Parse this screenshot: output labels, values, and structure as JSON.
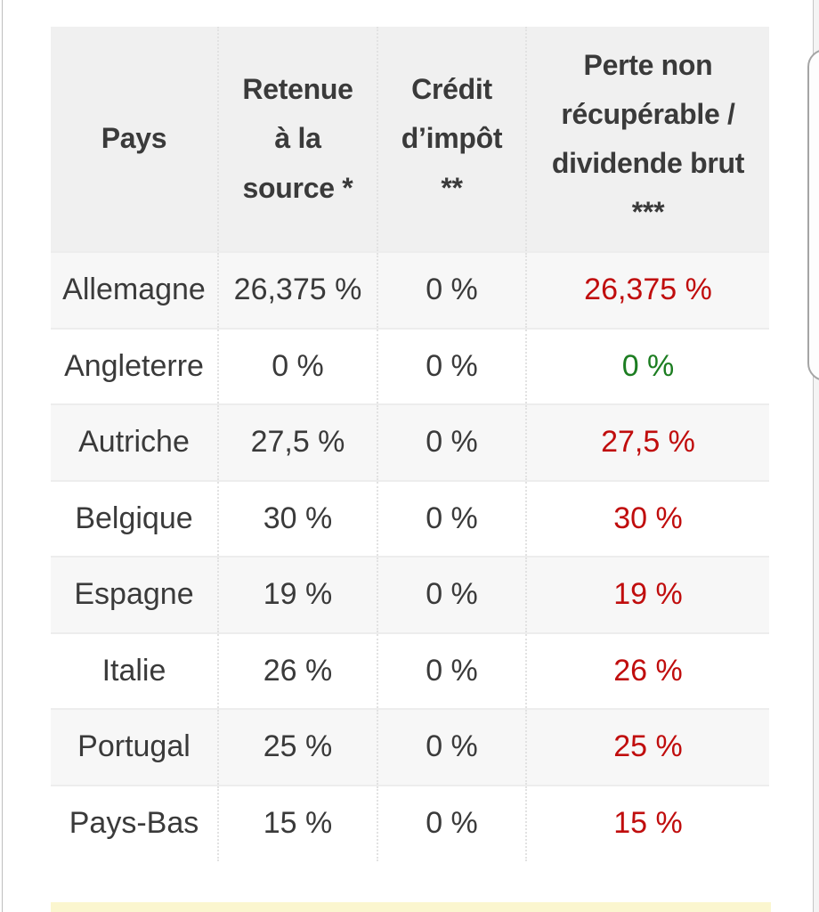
{
  "colors": {
    "red": "#c00d0d",
    "green": "#1c7d21",
    "text": "#3a3a3a",
    "header_bg": "#f0f0f0",
    "row_alt_bg": "#f7f7f7",
    "note_band_bg": "#fbf6cf"
  },
  "table": {
    "columns": [
      {
        "label": "Pays"
      },
      {
        "label": "Retenue\nà la\nsource *"
      },
      {
        "label": "Crédit\nd’impôt\n**"
      },
      {
        "label": "Perte non\nrécupérable /\ndividende brut\n***"
      }
    ],
    "rows": [
      {
        "pays": "Allemagne",
        "retenue": "26,375 %",
        "credit": "0 %",
        "perte": "26,375 %",
        "perte_color": "red"
      },
      {
        "pays": "Angleterre",
        "retenue": "0 %",
        "credit": "0 %",
        "perte": "0 %",
        "perte_color": "green"
      },
      {
        "pays": "Autriche",
        "retenue": "27,5 %",
        "credit": "0 %",
        "perte": "27,5 %",
        "perte_color": "red"
      },
      {
        "pays": "Belgique",
        "retenue": "30 %",
        "credit": "0 %",
        "perte": "30 %",
        "perte_color": "red"
      },
      {
        "pays": "Espagne",
        "retenue": "19 %",
        "credit": "0 %",
        "perte": "19 %",
        "perte_color": "red"
      },
      {
        "pays": "Italie",
        "retenue": "26 %",
        "credit": "0 %",
        "perte": "26 %",
        "perte_color": "red"
      },
      {
        "pays": "Portugal",
        "retenue": "25 %",
        "credit": "0 %",
        "perte": "25 %",
        "perte_color": "red"
      },
      {
        "pays": "Pays-Bas",
        "retenue": "15 %",
        "credit": "0 %",
        "perte": "15 %",
        "perte_color": "red"
      }
    ]
  }
}
